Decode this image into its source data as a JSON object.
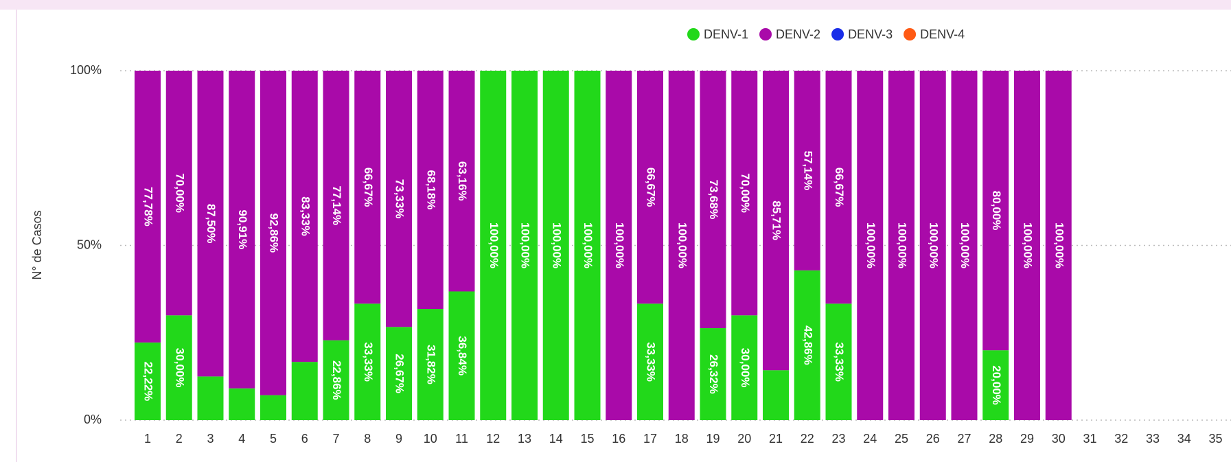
{
  "chart_data": {
    "type": "stacked_bar_100",
    "y_label": "N° de Casos",
    "categories": [
      "1",
      "2",
      "3",
      "4",
      "5",
      "6",
      "7",
      "8",
      "9",
      "10",
      "11",
      "12",
      "13",
      "14",
      "15",
      "16",
      "17",
      "18",
      "19",
      "20",
      "21",
      "22",
      "23",
      "24",
      "25",
      "26",
      "27",
      "28",
      "29",
      "30",
      "31",
      "32",
      "33",
      "34",
      "35"
    ],
    "ylim": [
      0,
      100
    ],
    "yticks": [
      {
        "value": 0,
        "label": "0%"
      },
      {
        "value": 50,
        "label": "50%"
      },
      {
        "value": 100,
        "label": "100%"
      }
    ],
    "grid": true,
    "legend": "top-right",
    "series": [
      {
        "name": "DENV-1",
        "color": "#22d81a",
        "values": [
          22.22,
          30,
          12.5,
          9.09,
          7.14,
          16.67,
          22.86,
          33.33,
          26.67,
          31.82,
          36.84,
          100,
          100,
          100,
          100,
          null,
          33.33,
          null,
          26.32,
          30,
          14.29,
          42.86,
          33.33,
          null,
          null,
          null,
          null,
          20,
          null,
          null,
          null,
          null,
          null,
          null,
          null
        ],
        "value_labels": [
          "22,22%",
          "30,00%",
          null,
          null,
          null,
          null,
          "22,86%",
          "33,33%",
          "26,67%",
          "31,82%",
          "36,84%",
          "100,00%",
          "100,00%",
          "100,00%",
          "100,00%",
          null,
          "33,33%",
          null,
          "26,32%",
          "30,00%",
          null,
          "42,86%",
          "33,33%",
          null,
          null,
          null,
          null,
          "20,00%",
          null,
          null,
          null,
          null,
          null,
          null,
          null
        ]
      },
      {
        "name": "DENV-2",
        "color": "#a90aa9",
        "values": [
          77.78,
          70,
          87.5,
          90.91,
          92.86,
          83.33,
          77.14,
          66.67,
          73.33,
          68.18,
          63.16,
          null,
          null,
          null,
          null,
          100,
          66.67,
          100,
          73.68,
          70,
          85.71,
          57.14,
          66.67,
          100,
          100,
          100,
          100,
          80,
          100,
          100,
          null,
          null,
          null,
          null,
          null
        ],
        "value_labels": [
          "77,78%",
          "70,00%",
          "87,50%",
          "90,91%",
          "92,86%",
          "83,33%",
          "77,14%",
          "66,67%",
          "73,33%",
          "68,18%",
          "63,16%",
          null,
          null,
          null,
          null,
          "100,00%",
          "66,67%",
          "100,00%",
          "73,68%",
          "70,00%",
          "85,71%",
          "57,14%",
          "66,67%",
          "100,00%",
          "100,00%",
          "100,00%",
          "100,00%",
          "80,00%",
          "100,00%",
          "100,00%",
          null,
          null,
          null,
          null,
          null
        ]
      },
      {
        "name": "DENV-3",
        "color": "#1a2ee8",
        "values": [
          null,
          null,
          null,
          null,
          null,
          null,
          null,
          null,
          null,
          null,
          null,
          null,
          null,
          null,
          null,
          null,
          null,
          null,
          null,
          null,
          null,
          null,
          null,
          null,
          null,
          null,
          null,
          null,
          null,
          null,
          null,
          null,
          null,
          null,
          null
        ]
      },
      {
        "name": "DENV-4",
        "color": "#ff5a14",
        "values": [
          null,
          null,
          null,
          null,
          null,
          null,
          null,
          null,
          null,
          null,
          null,
          null,
          null,
          null,
          null,
          null,
          null,
          null,
          null,
          null,
          null,
          null,
          null,
          null,
          null,
          null,
          null,
          null,
          null,
          null,
          null,
          null,
          null,
          null,
          null
        ]
      }
    ]
  }
}
